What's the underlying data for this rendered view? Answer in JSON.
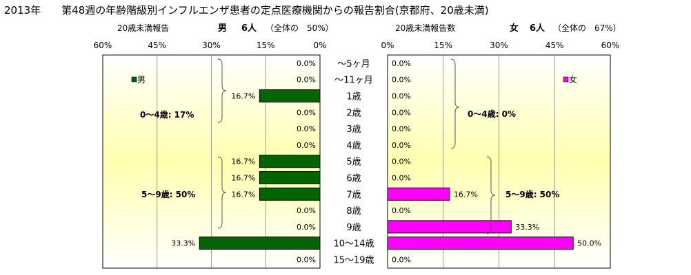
{
  "title": "2013年　　第48週の年齢階級別インフルエンザ患者の定点医療機関からの報告割合(京都府、20歳未満)",
  "colors": {
    "male": "#006400",
    "female": "#ff00ff",
    "bg_top": "#ffffff",
    "bg_mid": "#ffffb0",
    "grid": "#7f7f7f"
  },
  "chart_data": {
    "type": "bar",
    "categories": [
      "～5ヶ月",
      "～11ヶ月",
      "1歳",
      "2歳",
      "3歳",
      "4歳",
      "5歳",
      "6歳",
      "7歳",
      "8歳",
      "9歳",
      "10～14歳",
      "15～19歳"
    ],
    "xlim": [
      0,
      60
    ],
    "xticks": [
      "60%",
      "45%",
      "30%",
      "15%",
      "0%"
    ],
    "xticks_right": [
      "0%",
      "15%",
      "30%",
      "45%",
      "60%"
    ],
    "grid": true,
    "panels": {
      "male": {
        "header_left": "20歳未満報告",
        "header_label": "男",
        "header_count": "6人",
        "header_share": "（全体の　50%）",
        "legend": "男",
        "values": [
          0,
          0,
          16.7,
          0,
          0,
          0,
          16.7,
          16.7,
          16.7,
          0,
          0,
          33.3,
          0
        ],
        "labels": [
          "0.0%",
          "0.0%",
          "16.7%",
          "0.0%",
          "0.0%",
          "0.0%",
          "16.7%",
          "16.7%",
          "16.7%",
          "0.0%",
          "0.0%",
          "33.3%",
          "0.0%"
        ],
        "annotations": [
          "0～4歳:  17%",
          "5～9歳:  50%"
        ]
      },
      "female": {
        "header_left": "20歳未満報告数",
        "header_label": "女",
        "header_count": "6人",
        "header_share": "（全体の　67%）",
        "legend": "女",
        "values": [
          0,
          0,
          0,
          0,
          0,
          0,
          0,
          0,
          16.7,
          0,
          33.3,
          50.0,
          0
        ],
        "labels": [
          "0.0%",
          "0.0%",
          "0.0%",
          "0.0%",
          "0.0%",
          "0.0%",
          "0.0%",
          "0.0%",
          "16.7%",
          "0.0%",
          "33.3%",
          "50.0%",
          "0.0%"
        ],
        "annotations": [
          "0～4歳:  0%",
          "5～9歳:  50%"
        ]
      }
    }
  }
}
